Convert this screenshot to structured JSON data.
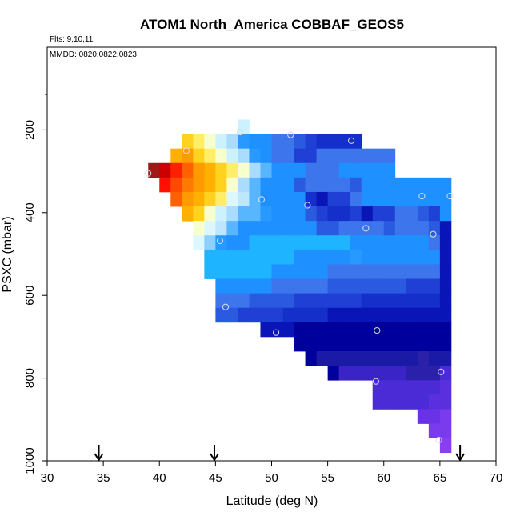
{
  "chart_data": {
    "type": "heatmap",
    "title": "ATOM1 North_America COBBAF_GEOS5",
    "annotations": [
      "Flts: 9,10,11",
      "MMDD: 0820,0822,0823"
    ],
    "xlabel": "Latitude (deg N)",
    "ylabel": "PSXC (mbar)",
    "xlim": [
      30,
      70
    ],
    "ylim": [
      1000,
      0
    ],
    "x_ticks": [
      30,
      35,
      40,
      45,
      50,
      55,
      60,
      65,
      70
    ],
    "y_ticks": [
      200,
      400,
      600,
      800,
      1000
    ],
    "cell_width_deg": 1,
    "cell_height_mbar": 35,
    "grid": false,
    "rows": [
      {
        "p": 210,
        "x0": 42,
        "colors": [
          "#ffd21f",
          "#ffee66",
          "#f7ffcc",
          "#ccf2ff",
          "#aadcff",
          "#2899ff",
          "#1e90ff",
          "#1e90ff",
          "#3d75ec",
          "#3d75ec",
          "#2a5ae0",
          "#1f3fd5",
          "#1530ca",
          "#1530ca",
          "#1530ca",
          "#1530ca"
        ]
      },
      {
        "p": 245,
        "x0": 41,
        "colors": [
          "#ffb000",
          "#ff9a00",
          "#ffd21f",
          "#ffee66",
          "#f7ffcc",
          "#ccf2ff",
          "#aadcff",
          "#2899ff",
          "#1e90ff",
          "#3d75ec",
          "#3d75ec",
          "#1f3fd5",
          "#1f3fd5",
          "#3d75ec",
          "#3d75ec",
          "#3d75ec",
          "#3d75ec",
          "#3d75ec",
          "#3d75ec",
          "#3d75ec"
        ]
      },
      {
        "p": 280,
        "x0": 39,
        "colors": [
          "#a01818",
          "#cc0000",
          "#ff2000",
          "#ff6000",
          "#ff9a00",
          "#ffb000",
          "#ffd21f",
          "#ffee66",
          "#f7ffcc",
          "#aadcff",
          "#57b6ff",
          "#1e90ff",
          "#1e90ff",
          "#1e90ff",
          "#3d75ec",
          "#3d75ec",
          "#3d75ec",
          "#1e90ff",
          "#1e90ff",
          "#1e90ff",
          "#1e90ff",
          "#1e90ff"
        ]
      },
      {
        "p": 315,
        "x0": 40,
        "colors": [
          "#ff1000",
          "#ff4a00",
          "#ff7a00",
          "#ff9a00",
          "#ffb000",
          "#ffd21f",
          "#f7ffcc",
          "#aadcff",
          "#57b6ff",
          "#1e90ff",
          "#1e90ff",
          "#1e90ff",
          "#2a5ae0",
          "#3d75ec",
          "#3d75ec",
          "#3d75ec",
          "#3d75ec",
          "#2a5ae0",
          "#1e90ff",
          "#1e90ff",
          "#1e90ff",
          "#1e90ff",
          "#1e90ff",
          "#1e90ff",
          "#1e90ff",
          "#1e90ff"
        ]
      },
      {
        "p": 350,
        "x0": 41,
        "colors": [
          "#ff6000",
          "#ff9a00",
          "#ffb000",
          "#ffd21f",
          "#ffee66",
          "#ddf7ff",
          "#bfe6ff",
          "#57b6ff",
          "#1e90ff",
          "#1e90ff",
          "#1e90ff",
          "#1e90ff",
          "#1530ca",
          "#0a15b8",
          "#1f3fd5",
          "#1f3fd5",
          "#3d75ec",
          "#1e90ff",
          "#1e90ff",
          "#1e90ff",
          "#1e90ff",
          "#1e90ff",
          "#1e90ff",
          "#1e90ff",
          "#1e90ff"
        ]
      },
      {
        "p": 385,
        "x0": 42,
        "colors": [
          "#ffb000",
          "#ffd21f",
          "#f7ffcc",
          "#ccf2ff",
          "#aadcff",
          "#57b6ff",
          "#57b6ff",
          "#2899ff",
          "#1e90ff",
          "#1e90ff",
          "#1e90ff",
          "#2a5ae0",
          "#1f3fd5",
          "#1530ca",
          "#1530ca",
          "#1f3fd5",
          "#0a15b8",
          "#1f3fd5",
          "#1f3fd5",
          "#3d75ec",
          "#3d75ec",
          "#2a5ae0",
          "#1f3fd5",
          "#1e90ff"
        ]
      },
      {
        "p": 420,
        "x0": 43,
        "colors": [
          "#f7ffcc",
          "#ddf7ff",
          "#bfe6ff",
          "#57b6ff",
          "#1e90ff",
          "#1e90ff",
          "#1e90ff",
          "#1e90ff",
          "#1e90ff",
          "#1e90ff",
          "#1e90ff",
          "#2a5ae0",
          "#2a5ae0",
          "#3d75ec",
          "#3d75ec",
          "#3d75ec",
          "#3d75ec",
          "#2a5ae0",
          "#3d75ec",
          "#3d75ec",
          "#3d75ec",
          "#2a5ae0",
          "#0a15b8"
        ]
      },
      {
        "p": 455,
        "x0": 43,
        "colors": [
          "#ddf7ff",
          "#8dd0ff",
          "#2899ff",
          "#1e90ff",
          "#1e90ff",
          "#1eb4ff",
          "#1eb4ff",
          "#1eb4ff",
          "#1eb4ff",
          "#1eb4ff",
          "#1eb4ff",
          "#1eb4ff",
          "#1eb4ff",
          "#1eb4ff",
          "#1e90ff",
          "#1e90ff",
          "#1e90ff",
          "#1e90ff",
          "#1e90ff",
          "#1e90ff",
          "#1e90ff",
          "#3d75ec",
          "#0a15b8"
        ]
      },
      {
        "p": 490,
        "x0": 44,
        "colors": [
          "#1eb4ff",
          "#1eb4ff",
          "#1eb4ff",
          "#1eb4ff",
          "#1eb4ff",
          "#1eb4ff",
          "#1eb4ff",
          "#1eb4ff",
          "#1e90ff",
          "#1e90ff",
          "#1e90ff",
          "#1e90ff",
          "#1e90ff",
          "#2899ff",
          "#1e90ff",
          "#1e90ff",
          "#1e90ff",
          "#1e90ff",
          "#1e90ff",
          "#1e90ff",
          "#1e90ff",
          "#0a15b8"
        ]
      },
      {
        "p": 525,
        "x0": 44,
        "colors": [
          "#1eb4ff",
          "#1eb4ff",
          "#1eb4ff",
          "#1eb4ff",
          "#1eb4ff",
          "#1eb4ff",
          "#1e90ff",
          "#1e90ff",
          "#1e90ff",
          "#1e90ff",
          "#1e90ff",
          "#3d75ec",
          "#3d75ec",
          "#3d75ec",
          "#3d75ec",
          "#3d75ec",
          "#3d75ec",
          "#3d75ec",
          "#3d75ec",
          "#3d75ec",
          "#3d75ec",
          "#0a15b8"
        ]
      },
      {
        "p": 560,
        "x0": 45,
        "colors": [
          "#1e90ff",
          "#1e90ff",
          "#1e90ff",
          "#1e90ff",
          "#1e90ff",
          "#3d75ec",
          "#3d75ec",
          "#3d75ec",
          "#3d75ec",
          "#3d75ec",
          "#2a5ae0",
          "#2a5ae0",
          "#2a5ae0",
          "#2a5ae0",
          "#2a5ae0",
          "#2a5ae0",
          "#2a5ae0",
          "#1f3fd5",
          "#1f3fd5",
          "#1f3fd5",
          "#0a15b8"
        ]
      },
      {
        "p": 595,
        "x0": 45,
        "colors": [
          "#3d75ec",
          "#3d75ec",
          "#3d75ec",
          "#2a5ae0",
          "#2a5ae0",
          "#2a5ae0",
          "#2a5ae0",
          "#1f3fd5",
          "#1f3fd5",
          "#1f3fd5",
          "#1f3fd5",
          "#1f3fd5",
          "#1f3fd5",
          "#1530ca",
          "#1530ca",
          "#1530ca",
          "#1530ca",
          "#1530ca",
          "#1530ca",
          "#1530ca",
          "#0a15b8"
        ]
      },
      {
        "p": 630,
        "x0": 45,
        "colors": [
          "#2a5ae0",
          "#2a5ae0",
          "#1f3fd5",
          "#1f3fd5",
          "#1f3fd5",
          "#1f3fd5",
          "#1530ca",
          "#1530ca",
          "#1530ca",
          "#1530ca",
          "#0a15b8",
          "#0a15b8",
          "#0a15b8",
          "#0a15b8",
          "#0a15b8",
          "#0a15b8",
          "#0a15b8",
          "#0a15b8",
          "#0a15b8",
          "#0a15b8",
          "#0a15b8"
        ]
      },
      {
        "p": 665,
        "x0": 49,
        "colors": [
          "#0a15b8",
          "#0a15b8",
          "#0a15b8",
          "#00009d",
          "#00009d",
          "#00009d",
          "#00009d",
          "#00009d",
          "#00009d",
          "#00009d",
          "#00009d",
          "#00009d",
          "#00009d",
          "#00009d",
          "#00009d",
          "#00009d",
          "#00009d"
        ]
      },
      {
        "p": 700,
        "x0": 52,
        "colors": [
          "#00009d",
          "#00009d",
          "#00009d",
          "#00009d",
          "#00009d",
          "#00009d",
          "#00009d",
          "#00009d",
          "#00009d",
          "#00009d",
          "#00009d",
          "#00009d",
          "#00009d",
          "#00009d"
        ]
      },
      {
        "p": 735,
        "x0": 53,
        "colors": [
          "#00009d",
          "#1a1aa6",
          "#1a1aa6",
          "#1a1aa6",
          "#1a1aa6",
          "#1a1aa6",
          "#1a1aa6",
          "#1a1aa6",
          "#1a1aa6",
          "#1a1aa6",
          "#2a20aa",
          "#1a1aa6",
          "#1a1aa6"
        ]
      },
      {
        "p": 770,
        "x0": 55,
        "colors": [
          "#00009d",
          "#3a24c8",
          "#3a24c8",
          "#3a24c8",
          "#3a24c8",
          "#3a24c8",
          "#3a24c8",
          "#2a20aa",
          "#2a20aa",
          "#2a20aa",
          "#4a2bd6"
        ]
      },
      {
        "p": 805,
        "x0": 59,
        "colors": [
          "#4a2bd6",
          "#4a2bd6",
          "#4a2bd6",
          "#4a2bd6",
          "#4a2bd6",
          "#4a2bd6",
          "#5a30de"
        ]
      },
      {
        "p": 840,
        "x0": 59,
        "colors": [
          "#4a2bd6",
          "#4a2bd6",
          "#4a2bd6",
          "#4a2bd6",
          "#4a2bd6",
          "#5a30de",
          "#5a30de"
        ]
      },
      {
        "p": 875,
        "x0": 63,
        "colors": [
          "#6a32e6",
          "#6a32e6",
          "#7a3aee"
        ]
      },
      {
        "p": 910,
        "x0": 64,
        "colors": [
          "#7a3aee",
          "#7a3aee"
        ]
      },
      {
        "p": 945,
        "x0": 65,
        "colors": [
          "#8a3ef0"
        ]
      }
    ],
    "extra_cells": [
      {
        "x0": 47,
        "p": 175,
        "color": "#ccf2ff"
      }
    ],
    "points": [
      {
        "x": 47.2,
        "y": 205
      },
      {
        "x": 51.7,
        "y": 212
      },
      {
        "x": 57.1,
        "y": 226
      },
      {
        "x": 42.4,
        "y": 250
      },
      {
        "x": 39.0,
        "y": 305
      },
      {
        "x": 49.1,
        "y": 368
      },
      {
        "x": 53.2,
        "y": 382
      },
      {
        "x": 63.4,
        "y": 360
      },
      {
        "x": 65.9,
        "y": 360
      },
      {
        "x": 58.4,
        "y": 438
      },
      {
        "x": 64.4,
        "y": 452
      },
      {
        "x": 45.4,
        "y": 468
      },
      {
        "x": 45.9,
        "y": 628
      },
      {
        "x": 50.4,
        "y": 690
      },
      {
        "x": 59.4,
        "y": 685
      },
      {
        "x": 65.1,
        "y": 785
      },
      {
        "x": 59.3,
        "y": 808
      },
      {
        "x": 64.9,
        "y": 950
      }
    ],
    "flight_markers_lat": [
      34.6,
      44.9,
      66.8
    ]
  },
  "colors": {
    "axis": "#000000",
    "point_stroke": "#dddddd"
  }
}
